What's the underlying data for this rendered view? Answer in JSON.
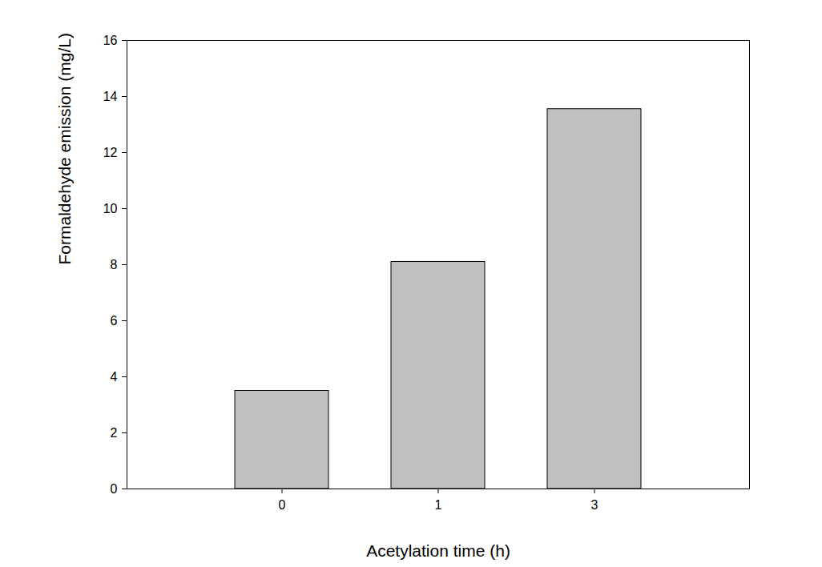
{
  "chart_data": {
    "type": "bar",
    "x_label": "Acetylation time (h)",
    "y_label": "Formaldehyde emission (mg/L)",
    "categories": [
      "0",
      "1",
      "3"
    ],
    "values": [
      3.5,
      8.1,
      13.55
    ],
    "color": "#c0c0c0",
    "ylim": [
      0,
      16
    ],
    "yticks": [
      0,
      2,
      4,
      6,
      8,
      10,
      12,
      14,
      16
    ],
    "grid": false
  }
}
